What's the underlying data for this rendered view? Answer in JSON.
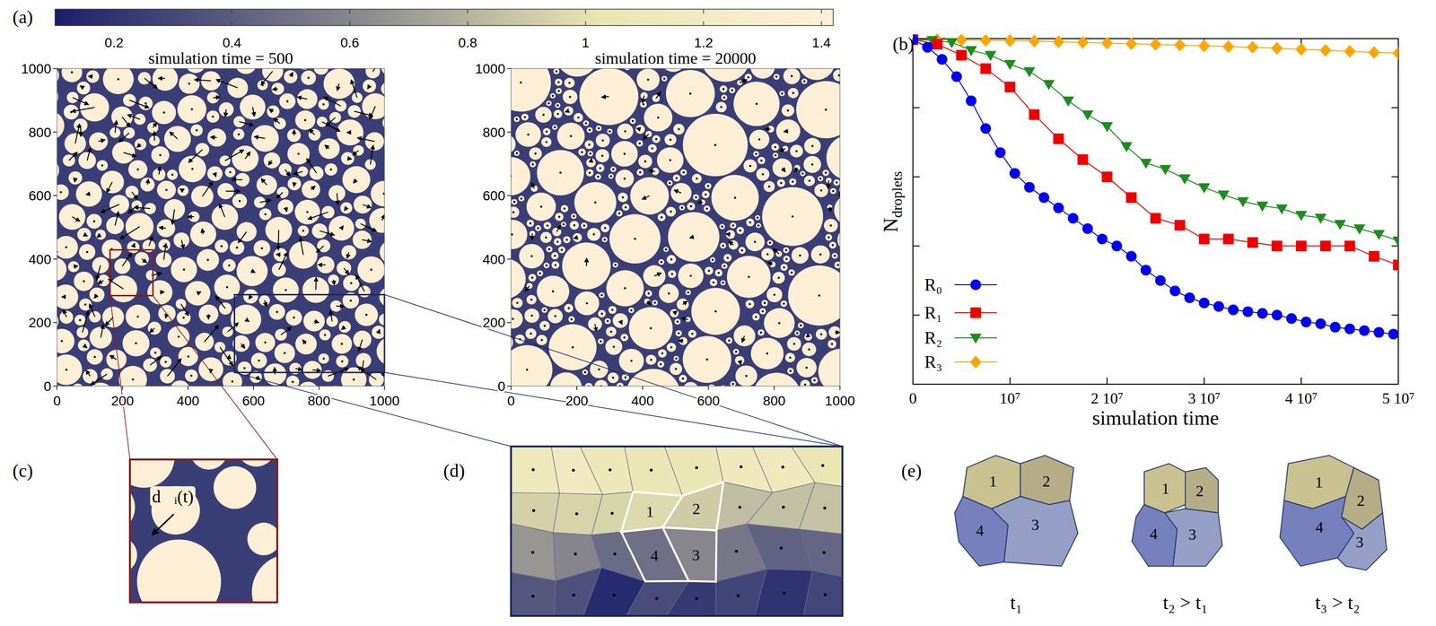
{
  "chart_data": [
    {
      "type": "image",
      "title": "simulation time = 500",
      "xlim": [
        0,
        1000
      ],
      "ylim": [
        0,
        1000
      ],
      "xticks": [
        0,
        200,
        400,
        600,
        800,
        1000
      ],
      "yticks": [
        0,
        200,
        400,
        600,
        800,
        1000
      ],
      "zoom_boxes": [
        {
          "x": [
            162,
            293
          ],
          "y": [
            285,
            429
          ],
          "color": "#8b1a1a"
        },
        {
          "x": [
            542,
            1000
          ],
          "y": [
            43,
            288
          ],
          "color": "#1b2a5c"
        }
      ]
    },
    {
      "type": "image",
      "title": "simulation time = 20000",
      "xlim": [
        0,
        1000
      ],
      "ylim": [
        0,
        1000
      ],
      "xticks": [
        0,
        200,
        400,
        600,
        800,
        1000
      ],
      "yticks": [
        0,
        200,
        400,
        600,
        800,
        1000
      ]
    },
    {
      "type": "line",
      "xlabel": "simulation time",
      "ylabel": "Ndroplets",
      "xlim": [
        0,
        50000000
      ],
      "ylim": [
        0,
        1
      ],
      "xticks": [
        0,
        {
          "value": 10000000,
          "label": "10⁷"
        },
        {
          "value": 20000000,
          "label": "2 10⁷"
        },
        {
          "value": 30000000,
          "label": "3 10⁷"
        },
        {
          "value": 40000000,
          "label": "4 10⁷"
        },
        {
          "value": 50000000,
          "label": "5 10⁷"
        }
      ],
      "yticks": [
        0.2,
        0.4,
        0.6,
        0.8
      ],
      "tick_labels": "x",
      "legend": "lower left",
      "series": [
        {
          "name": "R₀",
          "color": "#0000ee",
          "marker": "circle",
          "x": [
            0,
            1500000,
            3000000,
            4500000,
            6000000,
            7500000,
            9000000,
            10500000,
            12000000,
            13500000,
            15000000,
            16500000,
            18000000,
            19500000,
            21000000,
            22500000,
            24000000,
            25500000,
            27000000,
            28500000,
            30000000,
            31500000,
            33000000,
            34500000,
            36000000,
            37500000,
            39000000,
            40500000,
            42000000,
            43500000,
            45000000,
            46500000,
            48000000,
            49500000
          ],
          "values": [
            0.997,
            0.975,
            0.94,
            0.89,
            0.82,
            0.74,
            0.67,
            0.61,
            0.57,
            0.54,
            0.51,
            0.48,
            0.45,
            0.42,
            0.4,
            0.37,
            0.33,
            0.3,
            0.27,
            0.25,
            0.235,
            0.225,
            0.215,
            0.21,
            0.205,
            0.2,
            0.19,
            0.18,
            0.175,
            0.165,
            0.16,
            0.155,
            0.15,
            0.145
          ]
        },
        {
          "name": "R₁",
          "color": "#ee0000",
          "marker": "square",
          "x": [
            0,
            2500000,
            5000000,
            7500000,
            10000000,
            12500000,
            15000000,
            17500000,
            20000000,
            22500000,
            25000000,
            27500000,
            30000000,
            32500000,
            35000000,
            37500000,
            40000000,
            42500000,
            45000000,
            47500000,
            50000000
          ],
          "values": [
            0.997,
            0.984,
            0.952,
            0.913,
            0.86,
            0.78,
            0.71,
            0.65,
            0.6,
            0.54,
            0.48,
            0.46,
            0.42,
            0.42,
            0.41,
            0.4,
            0.4,
            0.4,
            0.4,
            0.37,
            0.345
          ]
        },
        {
          "name": "R₂",
          "color": "#1e8c1e",
          "marker": "triangle-down",
          "x": [
            0,
            2000000,
            4000000,
            6000000,
            8000000,
            10000000,
            12000000,
            14000000,
            16000000,
            18000000,
            20000000,
            22000000,
            24000000,
            26000000,
            28000000,
            30000000,
            32000000,
            34000000,
            36000000,
            38000000,
            40000000,
            42000000,
            44000000,
            46000000,
            48000000,
            50000000
          ],
          "values": [
            0.997,
            0.995,
            0.989,
            0.966,
            0.952,
            0.926,
            0.905,
            0.868,
            0.82,
            0.78,
            0.746,
            0.688,
            0.64,
            0.622,
            0.595,
            0.569,
            0.548,
            0.529,
            0.516,
            0.508,
            0.489,
            0.481,
            0.463,
            0.45,
            0.434,
            0.415
          ]
        },
        {
          "name": "R₃",
          "color": "#ffa500",
          "marker": "diamond",
          "x": [
            0,
            2500000,
            5000000,
            7500000,
            10000000,
            12500000,
            15000000,
            17500000,
            20000000,
            22500000,
            25000000,
            27500000,
            30000000,
            32500000,
            35000000,
            37500000,
            40000000,
            42500000,
            45000000,
            47500000,
            50000000
          ],
          "values": [
            0.997,
            0.997,
            0.996,
            0.995,
            0.994,
            0.993,
            0.991,
            0.989,
            0.987,
            0.985,
            0.983,
            0.981,
            0.979,
            0.977,
            0.975,
            0.972,
            0.969,
            0.966,
            0.963,
            0.96,
            0.958
          ]
        }
      ]
    }
  ],
  "colorbar": {
    "range": [
      0.1,
      1.42
    ],
    "ticks": [
      0.2,
      0.4,
      0.6,
      0.8,
      1,
      1.2,
      1.4
    ]
  },
  "panel_labels": [
    "(a)",
    "(b)",
    "(c)",
    "(d)",
    "(e)"
  ],
  "inset_c": {
    "label": "d⃗ᵢ(t)"
  },
  "inset_d": {
    "cells": [
      "1",
      "2",
      "3",
      "4"
    ]
  },
  "inset_e": {
    "cells": [
      "1",
      "2",
      "3",
      "4"
    ],
    "times": [
      "t₁",
      "t₂ > t₁",
      "t₃ > t₂"
    ]
  }
}
